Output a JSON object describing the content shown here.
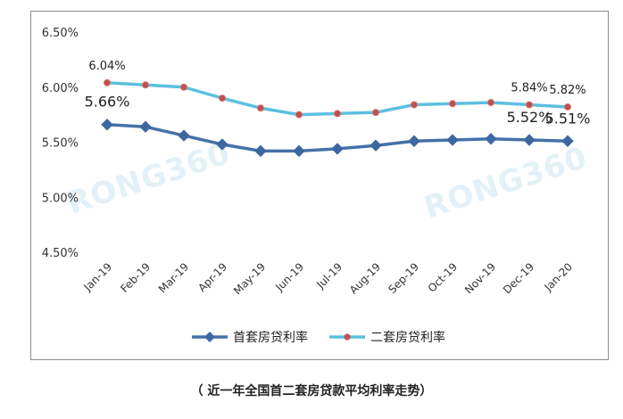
{
  "chart_data": {
    "type": "line",
    "categories": [
      "Jan-19",
      "Feb-19",
      "Mar-19",
      "Apr-19",
      "May-19",
      "Jun-19",
      "Jul-19",
      "Aug-19",
      "Sep-19",
      "Oct-19",
      "Nov-19",
      "Dec-19",
      "Jan-20"
    ],
    "series": [
      {
        "name": "首套房贷利率",
        "color": "#4472a8",
        "marker": "diamond",
        "values": [
          5.66,
          5.64,
          5.56,
          5.48,
          5.42,
          5.42,
          5.44,
          5.47,
          5.51,
          5.52,
          5.53,
          5.52,
          5.51
        ]
      },
      {
        "name": "二套房贷利率",
        "color": "#5bc0e0",
        "marker": "circle",
        "values": [
          6.04,
          6.02,
          6.0,
          5.9,
          5.81,
          5.75,
          5.76,
          5.77,
          5.84,
          5.85,
          5.86,
          5.84,
          5.82
        ]
      }
    ],
    "y_ticks": [
      "6.50%",
      "6.00%",
      "5.50%",
      "5.00%",
      "4.50%"
    ],
    "ylim": [
      4.5,
      6.5
    ],
    "grid": false,
    "legend_position": "bottom",
    "data_labels": [
      {
        "series": 1,
        "index": 0,
        "text": "6.04%",
        "size": "small"
      },
      {
        "series": 0,
        "index": 0,
        "text": "5.66%",
        "size": "large"
      },
      {
        "series": 1,
        "index": 11,
        "text": "5.84%",
        "size": "small"
      },
      {
        "series": 1,
        "index": 12,
        "text": "5.82%",
        "size": "small"
      },
      {
        "series": 0,
        "index": 11,
        "text": "5.52%",
        "size": "large"
      },
      {
        "series": 0,
        "index": 12,
        "text": "5.51%",
        "size": "large"
      }
    ],
    "watermark": "RONG360"
  },
  "caption": "（ 近一年全国首二套房贷款平均利率走势）"
}
